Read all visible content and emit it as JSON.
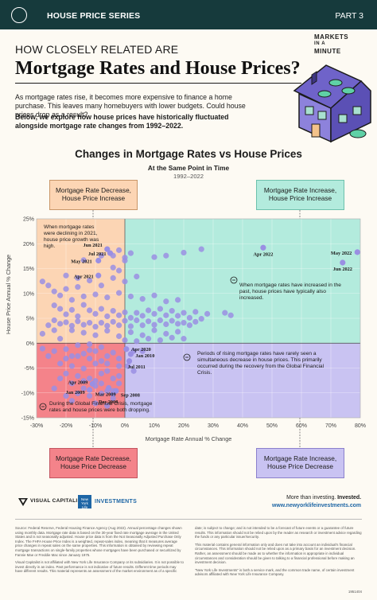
{
  "header": {
    "series": "HOUSE PRICE SERIES",
    "part": "PART 3"
  },
  "brand": {
    "line1": "MARKETS",
    "line2": "IN A",
    "line3": "MINUTE"
  },
  "hero": {
    "eyebrow": "HOW CLOSELY RELATED ARE",
    "title": "Mortgage Rates and House Prices?",
    "intro1": "As mortgage rates rise, it becomes more expensive to finance a home purchase. This leaves many homebuyers with lower budgets. Could house prices drop as a result?",
    "intro2": "Below, we explore how house prices have historically fluctuated alongside mortgage rate changes from 1992–2022."
  },
  "colors": {
    "peach": "#fcd5b4",
    "mint": "#b3ebdd",
    "red": "#f4838a",
    "lavender": "#c9c3f2",
    "dot": "#9a8fe3",
    "dark": "#163a3c"
  },
  "chart_data": {
    "type": "scatter",
    "title": "Changes in Mortgage Rates vs House Prices",
    "subtitle": "At the Same Point in Time",
    "years": "1992–2022",
    "xlabel": "Mortgage Rate Annual % Change",
    "ylabel": "House Price Annual % Change",
    "xlim": [
      -30,
      80
    ],
    "ylim": [
      -15,
      25
    ],
    "xticks": [
      "-30%",
      "-20%",
      "-10%",
      "0%",
      "10%",
      "20%",
      "30%",
      "40%",
      "50%",
      "60%",
      "70%",
      "80%"
    ],
    "yticks": [
      "25%",
      "20%",
      "15%",
      "10%",
      "5%",
      "0%",
      "-5%",
      "-10%",
      "-15%"
    ],
    "quadrants": {
      "tl": {
        "line1": "Mortgage Rate Decrease,",
        "line2": "House Price Increase"
      },
      "tr": {
        "line1": "Mortgage Rate Increase,",
        "line2": "House Price Increase"
      },
      "bl": {
        "line1": "Mortgage Rate Decrease,",
        "line2": "House Price Decrease"
      },
      "br": {
        "line1": "Mortgage Rate Increase,",
        "line2": "House Price Decrease"
      }
    },
    "annotations": {
      "tl": "When mortgage rates were declining in 2021, house price growth was high.",
      "tr": "When mortgage rates have increased in the past, house prices have typically also increased.",
      "br": "Periods of rising mortgage rates have rarely seen a simultaneous decrease in house prices. This primarily occurred during the recovery from the Global Financial Crisis.",
      "bl": "During the Global Financial Crisis, mortgage rates and house prices were both dropping."
    },
    "labeled_points": [
      {
        "label": "Jun 2021",
        "x": -6,
        "y": 18.9
      },
      {
        "label": "Jul 2021",
        "x": -5,
        "y": 18.1
      },
      {
        "label": "May 2021",
        "x": -9,
        "y": 16.6
      },
      {
        "label": "Apr 2021",
        "x": -9,
        "y": 13.6
      },
      {
        "label": "Apr 2022",
        "x": 47,
        "y": 19.2
      },
      {
        "label": "May 2022",
        "x": 79,
        "y": 18.3
      },
      {
        "label": "Jun 2022",
        "x": 74,
        "y": 16.2
      },
      {
        "label": "Apr 2020",
        "x": 0.5,
        "y": -1.2
      },
      {
        "label": "Jan 2010",
        "x": 2,
        "y": -2.2
      },
      {
        "label": "Jul 2011",
        "x": 1.5,
        "y": -3.6
      },
      {
        "label": "Apr 2009",
        "x": -11,
        "y": -8.2
      },
      {
        "label": "Jan 2009",
        "x": -12,
        "y": -9.4
      },
      {
        "label": "Mar 2009",
        "x": -5.5,
        "y": -9
      },
      {
        "label": "Dec 2008",
        "x": -4,
        "y": -10.2
      },
      {
        "label": "Sep 2008",
        "x": -3,
        "y": -9.6
      }
    ],
    "series": [
      {
        "values": [
          [
            -28,
            12.4
          ],
          [
            -26,
            11.6
          ],
          [
            -24,
            10.4
          ],
          [
            -22,
            9.6
          ],
          [
            -20,
            10.9
          ],
          [
            -18,
            8.7
          ],
          [
            -16,
            11.3
          ],
          [
            -24,
            7.6
          ],
          [
            -22,
            6.9
          ],
          [
            -20,
            5.8
          ],
          [
            -18,
            6.7
          ],
          [
            -16,
            5.4
          ],
          [
            -14,
            7.7
          ],
          [
            -12,
            6.6
          ],
          [
            -10,
            5.9
          ],
          [
            -8,
            6.9
          ],
          [
            -6,
            5.4
          ],
          [
            -4,
            6.5
          ],
          [
            -2,
            5.6
          ],
          [
            0,
            6.2
          ],
          [
            2,
            5.1
          ],
          [
            4,
            6.1
          ],
          [
            6,
            5.5
          ],
          [
            8,
            6.6
          ],
          [
            10,
            5.9
          ],
          [
            12,
            6.9
          ],
          [
            14,
            5.6
          ],
          [
            16,
            6.5
          ],
          [
            18,
            5.5
          ],
          [
            20,
            6.1
          ],
          [
            22,
            5.1
          ],
          [
            24,
            6.3
          ],
          [
            26,
            4.9
          ],
          [
            28,
            5.9
          ],
          [
            -24,
            4.6
          ],
          [
            -22,
            3.9
          ],
          [
            -20,
            4.2
          ],
          [
            -18,
            3.5
          ],
          [
            -16,
            4.4
          ],
          [
            -14,
            3.7
          ],
          [
            -12,
            4.1
          ],
          [
            -10,
            3.3
          ],
          [
            -8,
            4.1
          ],
          [
            -6,
            3.5
          ],
          [
            -4,
            4.3
          ],
          [
            -2,
            3.6
          ],
          [
            0,
            4.5
          ],
          [
            2,
            3.4
          ],
          [
            4,
            4.6
          ],
          [
            6,
            3.6
          ],
          [
            8,
            4.4
          ],
          [
            10,
            3.7
          ],
          [
            12,
            4.6
          ],
          [
            14,
            3.8
          ],
          [
            16,
            4.5
          ],
          [
            18,
            3.9
          ],
          [
            20,
            4.1
          ],
          [
            22,
            3.6
          ],
          [
            24,
            4.3
          ],
          [
            -18,
            2.6
          ],
          [
            -14,
            2.1
          ],
          [
            -10,
            1.6
          ],
          [
            -6,
            2.5
          ],
          [
            -2,
            1.4
          ],
          [
            2,
            2.2
          ],
          [
            6,
            1.6
          ],
          [
            10,
            2.6
          ],
          [
            14,
            1.9
          ],
          [
            18,
            2.3
          ],
          [
            -14,
            9.4
          ],
          [
            -10,
            9.8
          ],
          [
            -6,
            9.2
          ],
          [
            -2,
            10.1
          ],
          [
            2,
            9.4
          ],
          [
            6,
            8.9
          ],
          [
            10,
            9.6
          ],
          [
            14,
            8.4
          ],
          [
            18,
            8.7
          ],
          [
            -20,
            13.6
          ],
          [
            -16,
            13.1
          ],
          [
            -12,
            12.6
          ],
          [
            -8,
            11.6
          ],
          [
            -4,
            13.1
          ],
          [
            0,
            12.4
          ],
          [
            4,
            13.4
          ],
          [
            -14,
            16.7
          ],
          [
            -4,
            15.2
          ],
          [
            -2,
            14.6
          ],
          [
            0,
            17.2
          ],
          [
            2,
            18.1
          ],
          [
            10,
            17.3
          ],
          [
            14,
            17.6
          ],
          [
            20,
            18.2
          ],
          [
            26,
            18.9
          ],
          [
            -8,
            17.6
          ],
          [
            -4,
            17.6
          ],
          [
            -2,
            18.7
          ],
          [
            0,
            16.6
          ],
          [
            -12,
            -0.2
          ],
          [
            -8,
            -0.8
          ],
          [
            -16,
            -0.4
          ],
          [
            -20,
            -1.2
          ],
          [
            -24,
            -1.6
          ],
          [
            -18,
            -2.6
          ],
          [
            -14,
            -2.1
          ],
          [
            -10,
            -1.6
          ],
          [
            -6,
            -2.6
          ],
          [
            -2,
            -3.1
          ],
          [
            -22,
            -4.1
          ],
          [
            -18,
            -4.6
          ],
          [
            -14,
            -5.1
          ],
          [
            -10,
            -4.1
          ],
          [
            -6,
            -5.6
          ],
          [
            -2,
            -4.6
          ],
          [
            -20,
            -6.1
          ],
          [
            -16,
            -6.6
          ],
          [
            -12,
            -7.1
          ],
          [
            -8,
            -6.1
          ],
          [
            -4,
            -7.1
          ],
          [
            -18,
            -8.1
          ],
          [
            -14,
            -7.6
          ],
          [
            -10,
            -8.6
          ],
          [
            -6,
            -9.6
          ],
          [
            -2,
            -8.1
          ],
          [
            -16,
            -10.1
          ],
          [
            -12,
            -10.6
          ],
          [
            -8,
            -10.1
          ],
          [
            -4,
            -11.1
          ],
          [
            -10,
            -12.1
          ],
          [
            -6,
            -12.6
          ],
          [
            -24,
            -9.1
          ],
          [
            -20,
            -10.6
          ],
          [
            -18,
            -11.6
          ],
          [
            3,
            -1.6
          ],
          [
            6,
            -1.6
          ],
          [
            1,
            -4.6
          ],
          [
            3,
            -5.6
          ],
          [
            -26,
            -2.6
          ],
          [
            -28,
            -1.1
          ],
          [
            0,
            0.6
          ],
          [
            4,
            0.4
          ],
          [
            8,
            0.9
          ],
          [
            12,
            0.6
          ],
          [
            16,
            1.1
          ],
          [
            20,
            0.9
          ],
          [
            34,
            6.1
          ],
          [
            36,
            5.6
          ],
          [
            -28,
            1.9
          ],
          [
            -26,
            3.6
          ],
          [
            -24,
            2.6
          ],
          [
            -22,
            0.9
          ],
          [
            -20,
            -3.1
          ],
          [
            -22,
            -7.1
          ],
          [
            -16,
            -2.6
          ],
          [
            -12,
            -1.4
          ],
          [
            -8,
            -3.6
          ],
          [
            -4,
            -1.9
          ],
          [
            -12,
            -3.1
          ],
          [
            -6,
            -4.1
          ],
          [
            -14,
            -9.1
          ],
          [
            -8,
            -8.1
          ],
          [
            -2,
            -6.6
          ],
          [
            -10,
            -7.6
          ],
          [
            -4,
            -9.6
          ]
        ]
      }
    ]
  },
  "footer": {
    "vc": "VISUAL CAPITALIST",
    "nyl": "New York Life",
    "investments": "INVESTMENTS",
    "tagline_a": "More than investing. ",
    "tagline_b": "Invested.",
    "url": "www.newyorklifeinvestments.com",
    "source": "Source: Federal Reserve, Federal Housing Finance Agency (Aug 2022). Annual percentage changes shown using monthly data. Mortgage rate data is based on the 30-year fixed rate mortgage average in the United States and is not seasonally adjusted. House price data is from the Not Seasonally Adjusted Purchase Only Index. The FHFA House Price Index is a weighted, repeat-sales index, meaning that it measures average price changes in repeat sales on the same properties. This information is obtained by reviewing repeat mortgage transactions on single-family properties whose mortgages have been purchased or securitized by Fannie Mae or Freddie Mac since January 1975.",
    "disclaimer": "Visual Capitalist is not affiliated with New York Life Insurance Company or its subsidiaries. It is not possible to invest directly in an index. Past performance is not indicative of future results. Different time periods may have different results. This material represents an assessment of the market environment as of a specific",
    "right1": "date; is subject to change; and is not intended to be a forecast of future events or a guarantee of future results. This information should not be relied upon by the reader as research or investment advice regarding the funds or any particular issuer/security.",
    "right2": "This material contains general information only and does not take into account an individual's financial circumstances. This information should not be relied upon as a primary basis for an investment decision. Rather, an assessment should be made as to whether the information is appropriate in individual circumstances and consideration should be given to talking to a financial professional before making an investment decision.",
    "right3": "\"New York Life Investments\" is both a service mark, and the common trade name, of certain investment advisors affiliated with New York Life Insurance Company.",
    "code": "1951404"
  }
}
